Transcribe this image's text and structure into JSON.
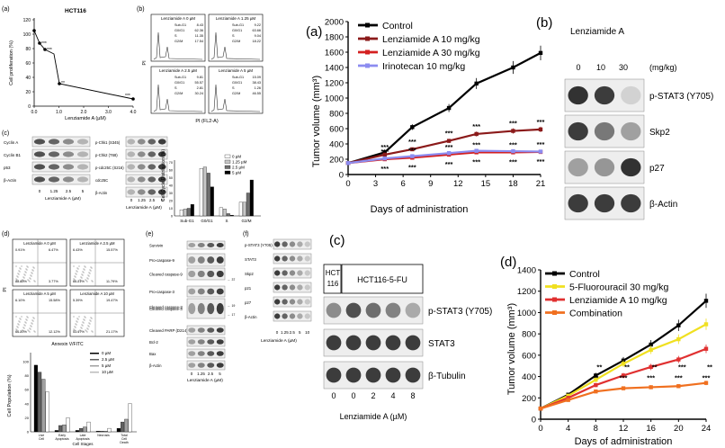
{
  "panel_a_small": {
    "label": "(a)",
    "title": "HCT116",
    "ylabel": "Cell proliferation (%)",
    "xlabel": "Lenziamide A (µM)",
    "xticks": [
      "0.0",
      "1.0",
      "2.0",
      "3.0",
      "4.0"
    ],
    "yticks": [
      "0",
      "20",
      "40",
      "60",
      "80",
      "100",
      "120"
    ],
    "stars": [
      "***",
      "***",
      "**",
      "***"
    ]
  },
  "panel_b_small": {
    "label": "(b)",
    "facets": [
      {
        "title": "Lenziamide A 0 µM",
        "subg1": "8.43",
        "g0g1": "62.36",
        "s": "11.35",
        "g2m": "17.54"
      },
      {
        "title": "Lenziamide A 1.25 µM",
        "subg1": "9.22",
        "g0g1": "63.66",
        "s": "9.04",
        "g2m": "18.22"
      },
      {
        "title": "Lenziamide A 2.5 µM",
        "subg1": "9.81",
        "g0g1": "55.57",
        "s": "2.81",
        "g2m": "30.24"
      },
      {
        "title": "Lenziamide A 5 µM",
        "subg1": "15.09",
        "g0g1": "38.43",
        "s": "1.26",
        "g2m": "46.55"
      }
    ],
    "row_labels": [
      "Sub-G1",
      "G0/G1",
      "S",
      "G2/M"
    ],
    "yaxis": "PI",
    "xaxis": "PI (FL2-A)"
  },
  "panel_c_small": {
    "label": "(c)",
    "left_bands": [
      "Cyclin A",
      "Cyclin B1",
      "p53",
      "β-Actin"
    ],
    "right_bands": [
      "p-Chk1 (S345)",
      "p-Chk2 (T68)",
      "p-cdc25C (S216)",
      "cdc25C",
      "β-Actin"
    ],
    "lanes": [
      "0",
      "1.25",
      "2.5",
      "5"
    ],
    "lane_title": "Lenziamide A (µM)"
  },
  "cell_cycle_chart": {
    "ylabel": "Cell Cycle Distribution (%)",
    "categories": [
      "Sub-G1",
      "G0/G1",
      "S",
      "G2/M"
    ],
    "legend": [
      "0 µM",
      "1.25 µM",
      "2.5 µM",
      "5 µM"
    ],
    "yticks": [
      "0",
      "10",
      "20",
      "30",
      "40",
      "50",
      "60",
      "70"
    ]
  },
  "panel_d_small": {
    "label": "(d)",
    "facets": [
      {
        "title": "Lenziamide A 0 µM",
        "q": [
          "0.91%",
          "6.47%",
          "88.85%",
          "3.77%"
        ]
      },
      {
        "title": "Lenziamide A 2.5 µM",
        "q": [
          "6.43%",
          "15.57%",
          "66.21%",
          "11.79%"
        ]
      },
      {
        "title": "Lenziamide A 5 µM",
        "q": [
          "6.10%",
          "15.58%",
          "66.20%",
          "12.12%"
        ]
      },
      {
        "title": "Lenziamide A 10 µM",
        "q": [
          "5.39%",
          "19.47%",
          "53.97%",
          "21.17%"
        ]
      }
    ],
    "yaxis": "PI",
    "xaxis": "Annexin V/FITC"
  },
  "cell_pop_chart": {
    "ylabel": "Cell Population (%)",
    "xlabel": "Cell Stages",
    "categories": [
      "Live Cell",
      "Early Apoptosis",
      "Late Apoptosis",
      "Necrosis",
      "Total Cell Death"
    ],
    "legend": [
      "0 µM",
      "2.5 µM",
      "5 µM",
      "10 µM"
    ],
    "yticks": [
      "0",
      "20",
      "40",
      "60",
      "80",
      "100"
    ]
  },
  "panel_e_small": {
    "label": "(e)",
    "bands": [
      "Survivin",
      "Pro-caspase-9",
      "Cleaved caspase-9",
      "Pro-caspase-3",
      "Cleaved caspase-3",
      "Cleaved caspase-3",
      "Cleaved PARP (D214)",
      "Bcl-2",
      "Bax",
      "β-Actin"
    ],
    "markers": [
      "37",
      "19",
      "17"
    ],
    "lanes": [
      "0",
      "1.25",
      "2.5",
      "5"
    ],
    "lane_title": "Lenziamide A (µM)"
  },
  "panel_f_small": {
    "label": "(f)",
    "bands": [
      "p-STAT3 (Y705)",
      "STAT3",
      "Skp2",
      "p21",
      "p27",
      "β-Actin"
    ],
    "lanes": [
      "0",
      "1.25",
      "2.5",
      "5",
      "10"
    ],
    "lane_title": "Lenziamide A (µM)"
  },
  "panel_a_main": {
    "label": "(a)",
    "ylabel": "Tumor volume (mm³)",
    "xlabel": "Days of administration",
    "stars_top": [
      "***",
      "***",
      "***",
      "***",
      "***",
      "***"
    ],
    "stars_mid": [
      "***",
      "***",
      "***",
      "***",
      "***",
      "***"
    ],
    "stars_bot": [
      "***",
      "***",
      "***",
      "***",
      "***",
      "***"
    ]
  },
  "panel_b_main": {
    "label": "(b)",
    "title": "Lenziamide A",
    "lanes": [
      "0",
      "10",
      "30"
    ],
    "unit": "(mg/kg)",
    "bands": [
      "p-STAT3 (Y705)",
      "Skp2",
      "p27",
      "β-Actin"
    ]
  },
  "panel_c_main": {
    "label": "(c)",
    "cell_a": "HCT\n116",
    "cell_a_line1": "HCT",
    "cell_a_line2": "116",
    "cell_b": "HCT116-5-FU",
    "bands": [
      "p-STAT3 (Y705)",
      "STAT3",
      "β-Tubulin"
    ],
    "lanes": [
      "0",
      "0",
      "2",
      "4",
      "8"
    ],
    "lane_title": "Lenziamide A (µM)"
  },
  "panel_d_main": {
    "label": "(d)",
    "ylabel": "Tumor volume (mm³)",
    "xlabel": "Days of administration"
  },
  "chart_data": [
    {
      "type": "line",
      "title": "",
      "xlabel": "Days of administration",
      "ylabel": "Tumor volume (mm³)",
      "x": [
        0,
        4,
        7,
        11,
        14,
        18,
        21
      ],
      "xlim": [
        0,
        21
      ],
      "ylim": [
        0,
        2000
      ],
      "xticks": [
        0,
        3,
        6,
        9,
        12,
        15,
        18,
        21
      ],
      "yticks": [
        0,
        200,
        400,
        600,
        800,
        1000,
        1200,
        1400,
        1600,
        1800,
        2000
      ],
      "legend_position": "top-left",
      "series": [
        {
          "name": "Control",
          "color": "#000000",
          "values": [
            150,
            290,
            620,
            870,
            1190,
            1400,
            1590
          ]
        },
        {
          "name": "Lenziamide A 10 mg/kg",
          "color": "#8b1a1a",
          "values": [
            150,
            260,
            330,
            440,
            530,
            570,
            590
          ]
        },
        {
          "name": "Lenziamide A 30 mg/kg",
          "color": "#d42020",
          "values": [
            150,
            200,
            220,
            260,
            290,
            290,
            295
          ]
        },
        {
          "name": "Irinotecan 10 mg/kg",
          "color": "#8c8cf0",
          "values": [
            150,
            210,
            240,
            280,
            310,
            305,
            300
          ]
        }
      ]
    },
    {
      "type": "line",
      "title": "",
      "xlabel": "Days of administration",
      "ylabel": "Tumor volume (mm³)",
      "x": [
        0,
        4,
        8,
        12,
        16,
        20,
        24
      ],
      "xlim": [
        0,
        24
      ],
      "ylim": [
        0,
        1400
      ],
      "xticks": [
        0,
        4,
        8,
        12,
        16,
        20,
        24
      ],
      "yticks": [
        0,
        200,
        400,
        600,
        800,
        1000,
        1200,
        1400
      ],
      "legend_position": "top-left",
      "series": [
        {
          "name": "Control",
          "color": "#000000",
          "values": [
            100,
            230,
            410,
            550,
            700,
            880,
            1110
          ]
        },
        {
          "name": "5-Fluorouracil 30 mg/kg",
          "color": "#f0e020",
          "values": [
            100,
            220,
            370,
            520,
            650,
            750,
            890
          ]
        },
        {
          "name": "Lenziamide A 10 mg/kg",
          "color": "#e03030",
          "values": [
            100,
            200,
            320,
            410,
            490,
            560,
            660
          ]
        },
        {
          "name": "Combination",
          "color": "#f07020",
          "values": [
            100,
            180,
            260,
            290,
            300,
            310,
            340
          ]
        }
      ]
    }
  ]
}
